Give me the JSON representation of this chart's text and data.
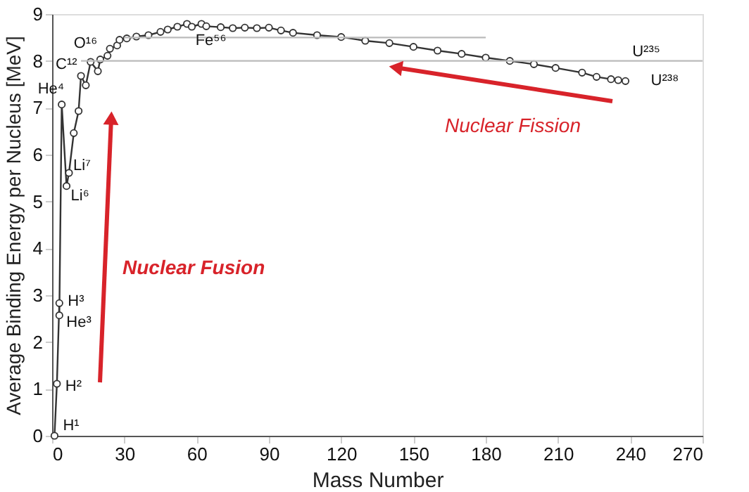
{
  "chart_data": {
    "type": "line",
    "xlabel": "Mass Number",
    "ylabel": "Average Binding Energy per Nucleus [MeV]",
    "xlim": [
      0,
      270
    ],
    "xticks": [
      0,
      30,
      60,
      90,
      120,
      150,
      180,
      210,
      240,
      270
    ],
    "ylim": [
      0,
      9
    ],
    "yticks": [
      0,
      1,
      2,
      3,
      4,
      5,
      6,
      7,
      8,
      9
    ],
    "marker": "circle",
    "line_style": "solid",
    "grid": false,
    "series": [
      {
        "color": "#333333",
        "x": [
          1,
          2,
          3,
          3,
          4,
          6,
          7,
          9,
          11,
          12,
          14,
          16,
          19,
          20,
          23,
          24,
          27,
          28,
          31,
          35,
          40,
          45,
          48,
          52,
          56,
          58,
          62,
          64,
          70,
          75,
          80,
          85,
          90,
          95,
          100,
          110,
          120,
          130,
          140,
          150,
          160,
          170,
          180,
          190,
          200,
          209,
          220,
          226,
          232,
          235,
          238
        ],
        "values": [
          0,
          1.11,
          2.83,
          2.57,
          7.07,
          5.33,
          5.61,
          6.46,
          6.93,
          7.68,
          7.48,
          7.98,
          7.78,
          8.03,
          8.11,
          8.26,
          8.33,
          8.45,
          8.48,
          8.52,
          8.55,
          8.62,
          8.67,
          8.73,
          8.79,
          8.73,
          8.79,
          8.74,
          8.72,
          8.7,
          8.71,
          8.7,
          8.71,
          8.65,
          8.6,
          8.55,
          8.51,
          8.43,
          8.38,
          8.3,
          8.22,
          8.15,
          8.07,
          8,
          7.93,
          7.85,
          7.75,
          7.66,
          7.61,
          7.59,
          7.57
        ]
      },
      {
        "color": "#bbbbbb",
        "marker": "none",
        "x": [
          30,
          180
        ],
        "values": [
          8.5,
          8.5
        ]
      },
      {
        "color": "#bbbbbb",
        "marker": "none",
        "x": [
          12,
          270
        ],
        "values": [
          8,
          8
        ]
      }
    ],
    "annotations": [
      {
        "text": "H¹",
        "x": 1,
        "y": 0
      },
      {
        "text": "H²",
        "x": 2,
        "y": 1.11
      },
      {
        "text": "H³",
        "x": 3,
        "y": 2.83
      },
      {
        "text": "He³",
        "x": 3,
        "y": 2.57
      },
      {
        "text": "He⁴",
        "x": 4,
        "y": 7.07
      },
      {
        "text": "Li⁶",
        "x": 6,
        "y": 5.33
      },
      {
        "text": "Li⁷",
        "x": 7,
        "y": 5.61
      },
      {
        "text": "C¹²",
        "x": 12,
        "y": 7.68
      },
      {
        "text": "O¹⁶",
        "x": 16,
        "y": 7.98
      },
      {
        "text": "Fe⁵⁶",
        "x": 56,
        "y": 8.79
      },
      {
        "text": "U²³⁵",
        "x": 235,
        "y": 7.59
      },
      {
        "text": "U²³⁸",
        "x": 238,
        "y": 7.57
      },
      "Nuclear Fusion",
      "Nuclear Fission"
    ]
  }
}
